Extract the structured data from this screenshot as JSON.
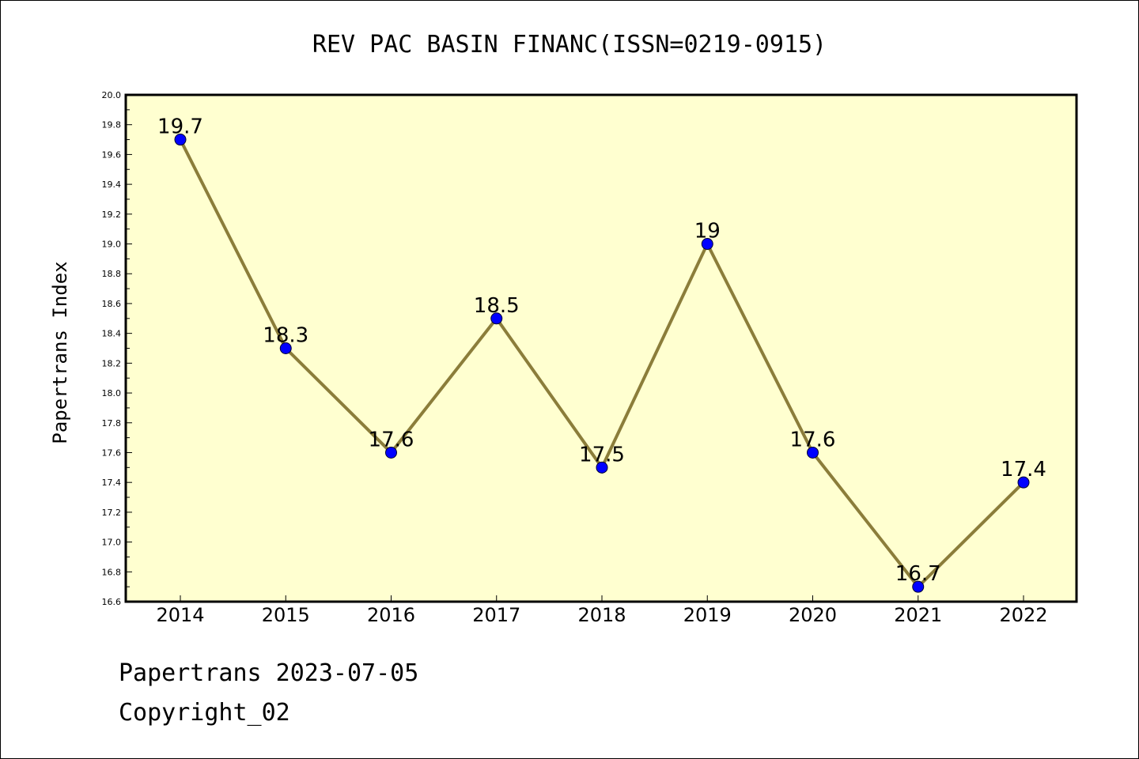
{
  "chart_data": {
    "type": "line",
    "title": "REV PAC BASIN FINANC(ISSN=0219-0915)",
    "xlabel": "",
    "ylabel": "Papertrans Index",
    "categories": [
      "2014",
      "2015",
      "2016",
      "2017",
      "2018",
      "2019",
      "2020",
      "2021",
      "2022"
    ],
    "series": [
      {
        "values": [
          19.7,
          18.3,
          17.6,
          18.5,
          17.5,
          19.0,
          17.6,
          16.7,
          17.4
        ]
      }
    ],
    "data_labels": [
      "19.7",
      "18.3",
      "17.6",
      "18.5",
      "17.5",
      "19",
      "17.6",
      "16.7",
      "17.4"
    ],
    "ylim": [
      16.6,
      20.0
    ],
    "yticks": [
      "16.6",
      "16.8",
      "17.0",
      "17.2",
      "17.4",
      "17.6",
      "17.8",
      "18.0",
      "18.2",
      "18.4",
      "18.6",
      "18.8",
      "19.0",
      "19.2",
      "19.4",
      "19.6",
      "19.8",
      "20.0"
    ],
    "grid": false,
    "colors": {
      "plot_background": "#ffffd0",
      "line": "#8b7d3a",
      "marker": "#0000ff"
    }
  },
  "footer": {
    "line1": "Papertrans 2023-07-05",
    "line2": "Copyright_02"
  }
}
